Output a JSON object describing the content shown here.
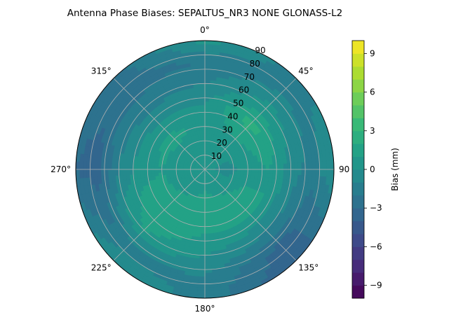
{
  "chart_data": {
    "type": "heatmap",
    "projection": "polar",
    "title": "Antenna Phase Biases: SEPALTUS_NR3    NONE GLONASS-L2",
    "theta_direction": "clockwise",
    "theta_zero": "top",
    "theta_ticks": [
      {
        "deg": 0,
        "label": "0°"
      },
      {
        "deg": 45,
        "label": "45°"
      },
      {
        "deg": 90,
        "label": "90"
      },
      {
        "deg": 135,
        "label": "135°"
      },
      {
        "deg": 180,
        "label": "180°"
      },
      {
        "deg": 225,
        "label": "225°"
      },
      {
        "deg": 270,
        "label": "270°"
      },
      {
        "deg": 315,
        "label": "315°"
      }
    ],
    "r_ticks": [
      "10",
      "20",
      "30",
      "40",
      "50",
      "60",
      "70",
      "80",
      "90"
    ],
    "r_lim": [
      0,
      90
    ],
    "grid": true,
    "colorbar": {
      "label": "Bias (mm)",
      "vmin": -10,
      "vmax": 10,
      "ticks": [
        "−9",
        "−6",
        "−3",
        "0",
        "3",
        "6",
        "9"
      ],
      "tick_values": [
        -9,
        -6,
        -3,
        0,
        3,
        6,
        9
      ],
      "levels": 20,
      "colormap": "viridis"
    },
    "azimuths": [
      0,
      45,
      90,
      135,
      180,
      225,
      270,
      315
    ],
    "zeniths": [
      0,
      15,
      30,
      45,
      60,
      75,
      90
    ],
    "values": [
      [
        0.5,
        0.5,
        0.5,
        0.5,
        0.5,
        0.5,
        0.5,
        0.5
      ],
      [
        0.0,
        0.5,
        -0.5,
        0.5,
        1.0,
        0.5,
        0.0,
        0.0
      ],
      [
        0.5,
        1.0,
        0.5,
        1.5,
        1.5,
        1.5,
        1.0,
        1.5
      ],
      [
        0.0,
        2.5,
        1.0,
        1.0,
        1.0,
        2.0,
        0.5,
        0.0
      ],
      [
        -1.0,
        0.5,
        -0.5,
        -1.0,
        0.0,
        1.0,
        -1.0,
        -1.5
      ],
      [
        -2.0,
        -1.0,
        -1.5,
        -3.5,
        -1.0,
        -1.5,
        -3.5,
        -2.5
      ],
      [
        0.5,
        -1.5,
        0.0,
        -4.0,
        -1.5,
        0.0,
        -3.0,
        -2.5
      ]
    ]
  }
}
